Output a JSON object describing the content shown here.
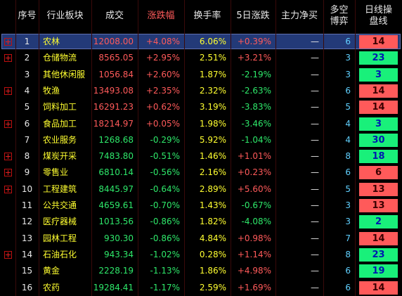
{
  "table": {
    "header": [
      "序号",
      "行业板块",
      "成交",
      "涨跌幅",
      "换手率",
      "5日涨跌",
      "主力净买",
      [
        "多空",
        "博弈"
      ],
      [
        "日线操",
        "盘线"
      ]
    ],
    "rows": [
      [
        "1",
        "农林",
        "12008.00",
        "+4.08%",
        "6.06%",
        "+0.39%",
        "—",
        "6",
        {
          "text": "14",
          "color": "#ff5a5a"
        }
      ],
      [
        "2",
        "仓储物流",
        "8565.05",
        "+2.95%",
        "2.51%",
        "+3.21%",
        "—",
        "3",
        {
          "text": "23",
          "color": "#19f07a"
        }
      ],
      [
        "3",
        "其他休闲服",
        "1056.84",
        "+2.60%",
        "1.87%",
        "-2.19%",
        "—",
        "3",
        {
          "text": "3",
          "color": "#19f07a"
        }
      ],
      [
        "4",
        "牧渔",
        "13493.08",
        "+2.35%",
        "2.32%",
        "-2.63%",
        "—",
        "6",
        {
          "text": "14",
          "color": "#ff5a5a"
        }
      ],
      [
        "5",
        "饲料加工",
        "16291.23",
        "+0.62%",
        "3.19%",
        "-3.83%",
        "—",
        "5",
        {
          "text": "14",
          "color": "#ff5a5a"
        }
      ],
      [
        "6",
        "食品加工",
        "18214.97",
        "+0.05%",
        "1.98%",
        "-3.46%",
        "—",
        "4",
        {
          "text": "3",
          "color": "#19f07a"
        }
      ],
      [
        "7",
        "农业服务",
        "1268.68",
        "-0.29%",
        "5.92%",
        "-1.04%",
        "—",
        "4",
        {
          "text": "30",
          "color": "#19f07a"
        }
      ],
      [
        "8",
        "煤炭开采",
        "7483.80",
        "-0.51%",
        "1.46%",
        "+1.01%",
        "—",
        "8",
        {
          "text": "18",
          "color": "#19f07a"
        }
      ],
      [
        "9",
        "零售业",
        "6810.14",
        "-0.56%",
        "2.16%",
        "+0.23%",
        "—",
        "6",
        {
          "text": "6",
          "color": "#ff5a5a"
        }
      ],
      [
        "10",
        "工程建筑",
        "8445.97",
        "-0.64%",
        "2.89%",
        "+5.60%",
        "—",
        "5",
        {
          "text": "13",
          "color": "#ff5a5a"
        }
      ],
      [
        "11",
        "公共交通",
        "4659.61",
        "-0.70%",
        "1.43%",
        "-0.67%",
        "—",
        "3",
        {
          "text": "13",
          "color": "#ff5a5a"
        }
      ],
      [
        "12",
        "医疗器械",
        "1013.56",
        "-0.86%",
        "1.82%",
        "-4.08%",
        "—",
        "3",
        {
          "text": "2",
          "color": "#19f07a"
        }
      ],
      [
        "13",
        "园林工程",
        "930.30",
        "-0.86%",
        "4.84%",
        "+0.98%",
        "—",
        "7",
        {
          "text": "14",
          "color": "#ff5a5a"
        }
      ],
      [
        "14",
        "石油石化",
        "943.34",
        "-1.02%",
        "0.28%",
        "+1.14%",
        "—",
        "8",
        {
          "text": "23",
          "color": "#19f07a"
        }
      ],
      [
        "15",
        "黄金",
        "2228.19",
        "-1.13%",
        "1.86%",
        "+4.98%",
        "—",
        "6",
        {
          "text": "19",
          "color": "#19f07a"
        }
      ],
      [
        "16",
        "农药",
        "19284.41",
        "-1.17%",
        "2.59%",
        "+1.69%",
        "—",
        "6",
        {
          "text": "14",
          "color": "#ff5a5a"
        }
      ]
    ]
  }
}
